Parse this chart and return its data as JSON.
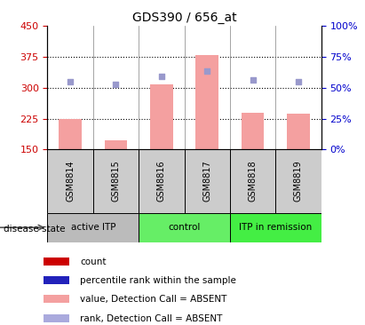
{
  "title": "GDS390 / 656_at",
  "samples": [
    "GSM8814",
    "GSM8815",
    "GSM8816",
    "GSM8817",
    "GSM8818",
    "GSM8819"
  ],
  "bar_values": [
    224,
    172,
    308,
    380,
    240,
    238
  ],
  "bar_base": 150,
  "rank_dots": [
    315,
    308,
    328,
    340,
    318,
    315
  ],
  "ylim_left": [
    150,
    450
  ],
  "ylim_right": [
    0,
    100
  ],
  "yticks_left": [
    150,
    225,
    300,
    375,
    450
  ],
  "yticks_right": [
    0,
    25,
    50,
    75,
    100
  ],
  "ytick_labels_right": [
    "0%",
    "25%",
    "50%",
    "75%",
    "100%"
  ],
  "hlines": [
    225,
    300,
    375
  ],
  "bar_color": "#f4a0a0",
  "dot_color": "#9999cc",
  "tick_label_color_left": "#cc0000",
  "tick_label_color_right": "#0000cc",
  "group_configs": [
    {
      "start": 0,
      "end": 2,
      "color": "#bbbbbb",
      "label": "active ITP"
    },
    {
      "start": 2,
      "end": 4,
      "color": "#66ee66",
      "label": "control"
    },
    {
      "start": 4,
      "end": 6,
      "color": "#44ee44",
      "label": "ITP in remission"
    }
  ],
  "legend_items": [
    {
      "color": "#cc0000",
      "label": "count"
    },
    {
      "color": "#2222bb",
      "label": "percentile rank within the sample"
    },
    {
      "color": "#f4a0a0",
      "label": "value, Detection Call = ABSENT"
    },
    {
      "color": "#aaaadd",
      "label": "rank, Detection Call = ABSENT"
    }
  ],
  "disease_state_label": "disease state"
}
